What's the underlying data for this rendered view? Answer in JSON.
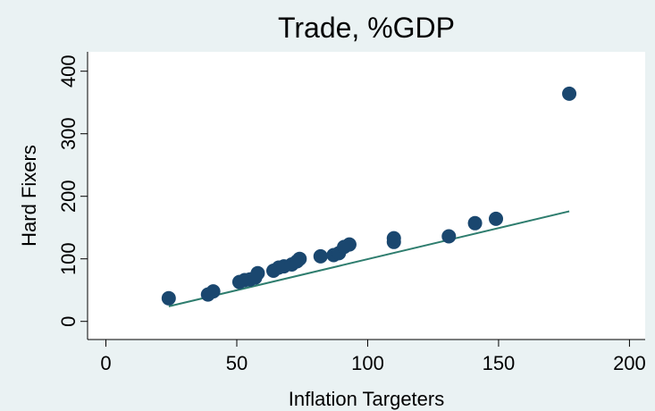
{
  "chart_data": {
    "type": "scatter",
    "title": "Trade, %GDP",
    "xlabel": "Inflation Targeters",
    "ylabel": "Hard Fixers",
    "x": [
      24,
      39,
      41,
      51,
      53,
      55,
      57,
      58,
      64,
      66,
      68,
      71,
      73,
      74,
      82,
      87,
      89,
      91,
      93,
      110,
      110,
      131,
      141,
      149,
      177
    ],
    "values": [
      37,
      43,
      48,
      63,
      66,
      67,
      70,
      77,
      81,
      86,
      88,
      91,
      96,
      100,
      104,
      106,
      109,
      119,
      123,
      127,
      133,
      136,
      157,
      164,
      364
    ],
    "color": "#1a476f",
    "fit": {
      "x": [
        24,
        177
      ],
      "values": [
        24,
        176
      ],
      "color": "#2e7d6e"
    },
    "xlim": [
      -7,
      206
    ],
    "ylim": [
      -29,
      431
    ],
    "xticks": [
      0,
      50,
      100,
      150,
      200
    ],
    "yticks": [
      0,
      100,
      200,
      300,
      400
    ]
  }
}
